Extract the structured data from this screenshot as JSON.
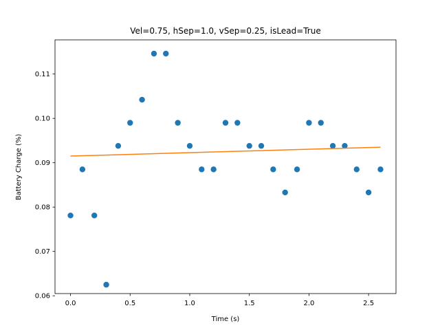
{
  "chart_data": {
    "type": "scatter",
    "title": "Vel=0.75, hSep=1.0, vSep=0.25, isLead=True",
    "xlabel": "Time (s)",
    "ylabel": "Battery Charge (%)",
    "xlim": [
      -0.13,
      2.73
    ],
    "ylim": [
      0.0605,
      0.1177
    ],
    "x_ticks": [
      0.0,
      0.5,
      1.0,
      1.5,
      2.0,
      2.5
    ],
    "x_tick_labels": [
      "0.0",
      "0.5",
      "1.0",
      "1.5",
      "2.0",
      "2.5"
    ],
    "y_ticks": [
      0.06,
      0.07,
      0.08,
      0.09,
      0.1,
      0.11
    ],
    "y_tick_labels": [
      "0.06",
      "0.07",
      "0.08",
      "0.09",
      "0.10",
      "0.11"
    ],
    "grid": false,
    "series": [
      {
        "type": "scatter",
        "color": "#1f77b4",
        "x": [
          0.0,
          0.1,
          0.2,
          0.3,
          0.4,
          0.5,
          0.6,
          0.7,
          0.8,
          0.9,
          1.0,
          1.1,
          1.2,
          1.3,
          1.4,
          1.5,
          1.6,
          1.7,
          1.8,
          1.9,
          2.0,
          2.1,
          2.2,
          2.3,
          2.4,
          2.5,
          2.6
        ],
        "y": [
          0.0781,
          0.0885,
          0.0781,
          0.0625,
          0.0938,
          0.099,
          0.1042,
          0.1146,
          0.1146,
          0.099,
          0.0938,
          0.0885,
          0.0885,
          0.099,
          0.099,
          0.0938,
          0.0938,
          0.0885,
          0.0833,
          0.0885,
          0.099,
          0.099,
          0.0938,
          0.0938,
          0.0885,
          0.0833,
          0.0885
        ]
      },
      {
        "type": "line",
        "color": "#ff7f0e",
        "x": [
          0.0,
          2.6
        ],
        "y": [
          0.0915,
          0.0935
        ]
      }
    ]
  }
}
